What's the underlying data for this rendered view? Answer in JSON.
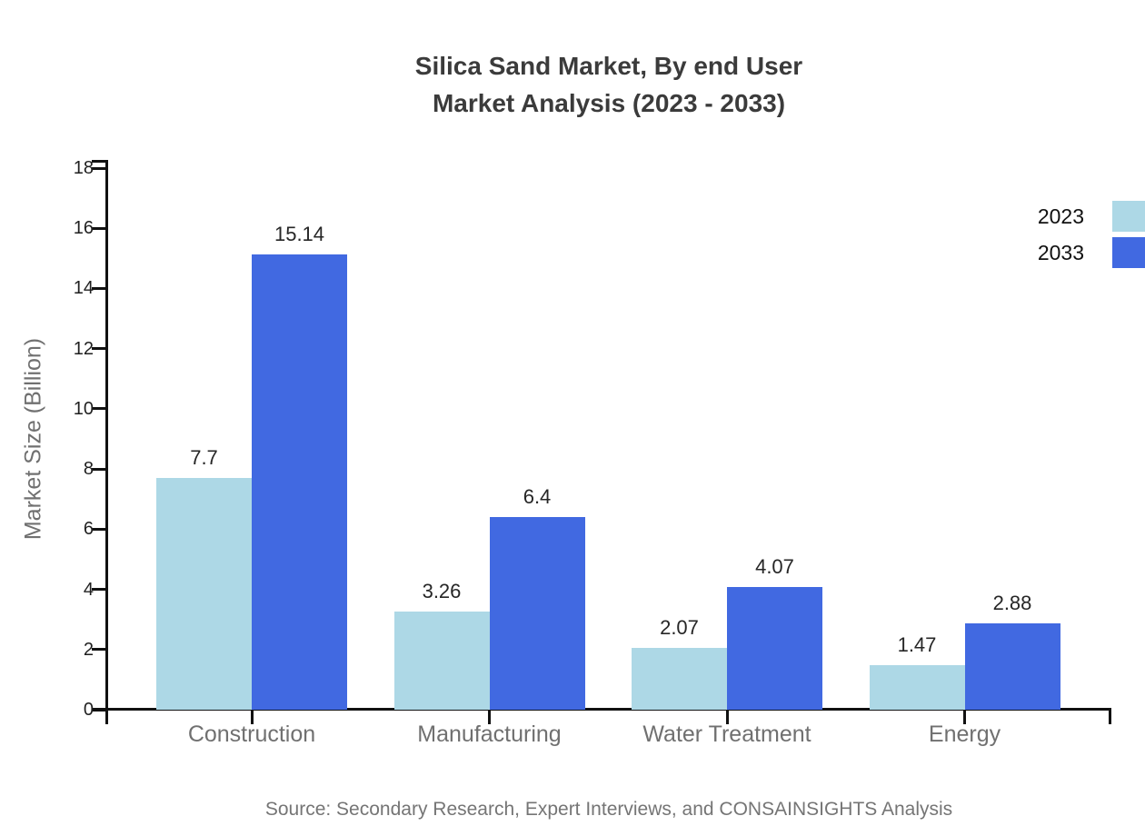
{
  "title": {
    "line1": "Silica Sand Market, By end User",
    "line2": "Market Analysis (2023 - 2033)"
  },
  "source": "Source: Secondary Research, Expert Interviews, and CONSAINSIGHTS Analysis",
  "chart_data": {
    "type": "bar",
    "categories": [
      "Construction",
      "Manufacturing",
      "Water Treatment",
      "Energy"
    ],
    "series": [
      {
        "name": "2023",
        "color": "#ADD8E6",
        "values": [
          7.7,
          3.26,
          2.07,
          1.47
        ]
      },
      {
        "name": "2033",
        "color": "#4169E1",
        "values": [
          15.14,
          6.4,
          4.07,
          2.88
        ]
      }
    ],
    "value_labels": {
      "2023": [
        "7.7",
        "3.26",
        "2.07",
        "1.47"
      ],
      "2033": [
        "15.14",
        "6.4",
        "4.07",
        "2.88"
      ]
    },
    "xlabel": "",
    "ylabel": "Market Size (Billion)",
    "ylim": [
      0,
      18
    ],
    "yticks": [
      0,
      2,
      4,
      6,
      8,
      10,
      12,
      14,
      16,
      18
    ],
    "grid": false,
    "legend_position": "top-right",
    "legend_entries": [
      "2023",
      "2033"
    ]
  }
}
